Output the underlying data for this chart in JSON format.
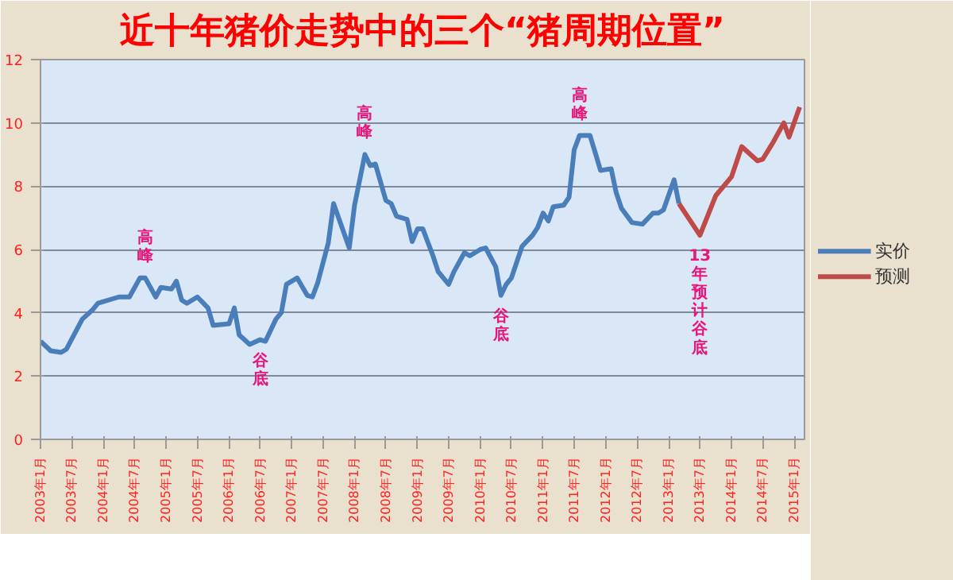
{
  "chart_data": {
    "type": "line",
    "title": "近十年猪价走势中的三个“猪周期位置”",
    "series": [
      {
        "name": "实价",
        "color": "#4a7ebb",
        "x": [
          "2003-01",
          "2003-03",
          "2003-05",
          "2003-06",
          "2003-09",
          "2003-11",
          "2003-12",
          "2004-04",
          "2004-06",
          "2004-08",
          "2004-09",
          "2004-11",
          "2004-12",
          "2005-02",
          "2005-03",
          "2005-04",
          "2005-05",
          "2005-07",
          "2005-09",
          "2005-10",
          "2006-01",
          "2006-02",
          "2006-03",
          "2006-05",
          "2006-07",
          "2006-08",
          "2006-10",
          "2006-11",
          "2006-12",
          "2007-02",
          "2007-04",
          "2007-05",
          "2007-06",
          "2007-08",
          "2007-09",
          "2007-12",
          "2008-01",
          "2008-03",
          "2008-04",
          "2008-05",
          "2008-07",
          "2008-08",
          "2008-09",
          "2008-11",
          "2008-12",
          "2009-01",
          "2009-02",
          "2009-04",
          "2009-05",
          "2009-07",
          "2009-08",
          "2009-10",
          "2009-11",
          "2010-01",
          "2010-02",
          "2010-04",
          "2010-05",
          "2010-06",
          "2010-07",
          "2010-09",
          "2010-11",
          "2010-12",
          "2011-01",
          "2011-02",
          "2011-03",
          "2011-05",
          "2011-06",
          "2011-07",
          "2011-08",
          "2011-10",
          "2011-11",
          "2011-12",
          "2012-02",
          "2012-03",
          "2012-04",
          "2012-06",
          "2012-08",
          "2012-10",
          "2012-11",
          "2012-12",
          "2013-02",
          "2013-03"
        ],
        "values": [
          3.1,
          2.8,
          2.75,
          2.85,
          3.8,
          4.1,
          4.3,
          4.5,
          4.5,
          5.1,
          5.1,
          4.5,
          4.8,
          4.75,
          5.0,
          4.4,
          4.3,
          4.5,
          4.15,
          3.6,
          3.65,
          4.15,
          3.3,
          3.0,
          3.15,
          3.1,
          3.8,
          4.0,
          4.9,
          5.1,
          4.55,
          4.5,
          4.95,
          6.2,
          7.45,
          6.05,
          7.4,
          9.0,
          8.65,
          8.7,
          7.55,
          7.45,
          7.05,
          6.95,
          6.25,
          6.65,
          6.65,
          5.8,
          5.3,
          4.9,
          5.3,
          5.9,
          5.8,
          6.0,
          6.05,
          5.45,
          4.55,
          4.9,
          5.1,
          6.1,
          6.45,
          6.7,
          7.15,
          6.9,
          7.35,
          7.4,
          7.65,
          9.15,
          9.6,
          9.6,
          9.05,
          8.5,
          8.55,
          7.8,
          7.3,
          6.85,
          6.8,
          7.15,
          7.15,
          7.25,
          8.2,
          7.45
        ]
      },
      {
        "name": "预测",
        "color": "#be4b48",
        "x": [
          "2013-03",
          "2013-07",
          "2013-10",
          "2014-01",
          "2014-03",
          "2014-06",
          "2014-07",
          "2014-09",
          "2014-11",
          "2014-12",
          "2015-02"
        ],
        "values": [
          7.45,
          6.45,
          7.7,
          8.3,
          9.25,
          8.8,
          8.85,
          9.4,
          10.0,
          9.55,
          10.5
        ]
      }
    ],
    "annotations": [
      {
        "text": "高峰",
        "x": "2004-09",
        "y": 5.1
      },
      {
        "text": "谷底",
        "x": "2006-07",
        "y": 3.15
      },
      {
        "text": "高峰",
        "x": "2008-03",
        "y": 9.0
      },
      {
        "text": "谷底",
        "x": "2010-05",
        "y": 4.55
      },
      {
        "text": "高峰",
        "x": "2011-08",
        "y": 9.6
      },
      {
        "text": "13年预计谷底",
        "x": "2013-07",
        "y": 6.45
      }
    ],
    "xlim": [
      "2003-01",
      "2015-03"
    ],
    "xticks": [
      {
        "value": "2003-01",
        "label": "2003年1月"
      },
      {
        "value": "2003-07",
        "label": "2003年7月"
      },
      {
        "value": "2004-01",
        "label": "2004年1月"
      },
      {
        "value": "2004-07",
        "label": "2004年7月"
      },
      {
        "value": "2005-01",
        "label": "2005年1月"
      },
      {
        "value": "2005-07",
        "label": "2005年7月"
      },
      {
        "value": "2006-01",
        "label": "2006年1月"
      },
      {
        "value": "2006-07",
        "label": "2006年7月"
      },
      {
        "value": "2007-01",
        "label": "2007年1月"
      },
      {
        "value": "2007-07",
        "label": "2007年7月"
      },
      {
        "value": "2008-01",
        "label": "2008年1月"
      },
      {
        "value": "2008-07",
        "label": "2008年7月"
      },
      {
        "value": "2009-01",
        "label": "2009年1月"
      },
      {
        "value": "2009-07",
        "label": "2009年7月"
      },
      {
        "value": "2010-01",
        "label": "2010年1月"
      },
      {
        "value": "2010-07",
        "label": "2010年7月"
      },
      {
        "value": "2011-01",
        "label": "2011年1月"
      },
      {
        "value": "2011-07",
        "label": "2011年7月"
      },
      {
        "value": "2012-01",
        "label": "2012年1月"
      },
      {
        "value": "2012-07",
        "label": "2012年7月"
      },
      {
        "value": "2013-01",
        "label": "2013年1月"
      },
      {
        "value": "2013-07",
        "label": "2013年7月"
      },
      {
        "value": "2014-01",
        "label": "2014年1月"
      },
      {
        "value": "2014-07",
        "label": "2014年7月"
      },
      {
        "value": "2015-01",
        "label": "2015年1月"
      }
    ],
    "ylim": [
      0,
      12
    ],
    "yticks": [
      0,
      2,
      4,
      6,
      8,
      10,
      12
    ],
    "grid": "y",
    "legend": "right",
    "line_style": "solid"
  }
}
